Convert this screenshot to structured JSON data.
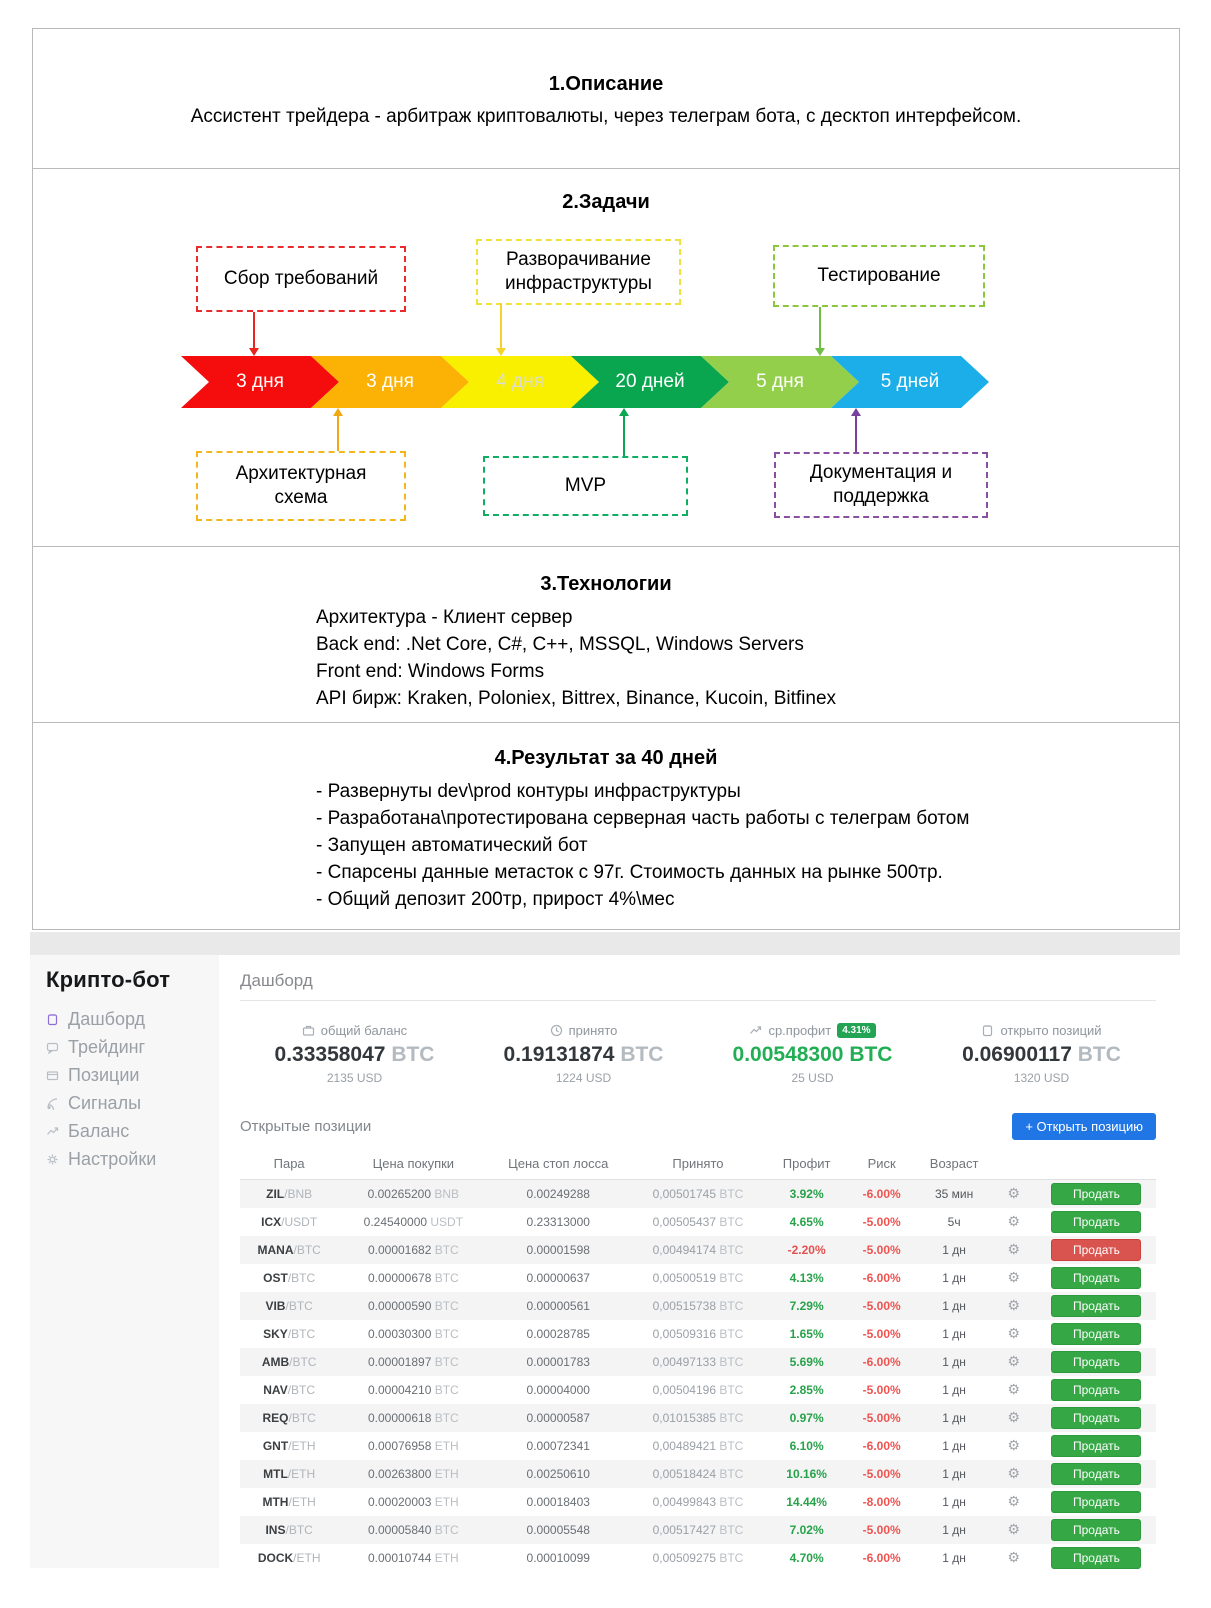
{
  "document": {
    "section1": {
      "title": "1.Описание",
      "text": "Ассистент трейдера - арбитраж криптовалюты, через телеграм бота, с десктоп интерфейсом."
    },
    "section2": {
      "title": "2.Задачи",
      "top_boxes": [
        {
          "label": "Сбор требований",
          "border_color": "#e82c2c"
        },
        {
          "label": "Разворачивание инфраструктуры",
          "border_color": "#f0e13c"
        },
        {
          "label": "Тестирование",
          "border_color": "#8cc63f"
        }
      ],
      "timeline": [
        {
          "label": "3 дня",
          "color": "#f50d0d",
          "text_color": "#ffffff"
        },
        {
          "label": "3 дня",
          "color": "#fcb105",
          "text_color": "#ffffff"
        },
        {
          "label": "4 дня",
          "color": "#f9f000",
          "text_color": "#dcdcd2"
        },
        {
          "label": "20 дней",
          "color": "#0aa64f",
          "text_color": "#ffffff"
        },
        {
          "label": "5 дня",
          "color": "#94cf4c",
          "text_color": "#ffffff"
        },
        {
          "label": "5 дней",
          "color": "#1caee8",
          "text_color": "#ffffff"
        }
      ],
      "bottom_boxes": [
        {
          "label": "Архитектурная схема",
          "border_color": "#f3b71b"
        },
        {
          "label": "MVP",
          "border_color": "#0fae62"
        },
        {
          "label": "Документация и поддержка",
          "border_color": "#8a4fa0"
        }
      ],
      "connectors": [
        {
          "position": "top",
          "color": "#e8251f"
        },
        {
          "position": "top",
          "color": "#f5d32c"
        },
        {
          "position": "top",
          "color": "#6fbf44"
        },
        {
          "position": "bottom",
          "color": "#f2a911"
        },
        {
          "position": "bottom",
          "color": "#0ca750"
        },
        {
          "position": "bottom",
          "color": "#7b3f9e"
        }
      ]
    },
    "section3": {
      "title": "3.Технологии",
      "lines": [
        "Архитектура - Клиент сервер",
        "Back end: .Net Core, C#, C++, MSSQL, Windows Servers",
        "Front end: Windows Forms",
        "API бирж: Kraken, Poloniex, Bittrex, Binance, Kucoin, Bitfinex"
      ]
    },
    "section4": {
      "title": "4.Результат за 40 дней",
      "lines": [
        "- Развернуты dev\\prod контуры инфраструктуры",
        "- Разработана\\протестирована серверная часть работы с телеграм ботом",
        "- Запущен автоматический бот",
        "- Спарсены данные метасток с 97г. Стоимость данных на рынке 500тр.",
        "- Общий депозит 200тр, прирост 4%\\мес"
      ]
    }
  },
  "app": {
    "brand": "Крипто-бот",
    "nav": [
      {
        "icon": "dashboard-icon",
        "label": "Дашборд"
      },
      {
        "icon": "trading-icon",
        "label": "Трейдинг"
      },
      {
        "icon": "positions-icon",
        "label": "Позиции"
      },
      {
        "icon": "signals-icon",
        "label": "Сигналы"
      },
      {
        "icon": "balance-icon",
        "label": "Баланс"
      },
      {
        "icon": "settings-icon",
        "label": "Настройки"
      }
    ],
    "page_title": "Дашборд",
    "stats": [
      {
        "icon": "briefcase-icon",
        "label": "общий баланс",
        "value": "0.33358047",
        "unit": "BTC",
        "usd": "2135 USD"
      },
      {
        "icon": "clock-icon",
        "label": "принято",
        "value": "0.19131874",
        "unit": "BTC",
        "usd": "1224 USD"
      },
      {
        "icon": "trend-icon",
        "label": "ср.профит",
        "badge": "4.31%",
        "value": "0.00548300",
        "unit": "BTC",
        "usd": "25 USD",
        "highlight": true
      },
      {
        "icon": "clipboard-icon",
        "label": "открыто позиций",
        "value": "0.06900117",
        "unit": "BTC",
        "usd": "1320 USD"
      }
    ],
    "positions": {
      "title": "Открытые позиции",
      "open_button": "+ Открыть позицию",
      "sell_label": "Продать",
      "gear_icon": "⚙",
      "columns": [
        "Пара",
        "Цена покупки",
        "Цена стоп лосса",
        "Принято",
        "Профит",
        "Риск",
        "Возраст",
        "",
        ""
      ],
      "accepted_currency": "BTC",
      "rows": [
        {
          "pair": "ZIL",
          "quote": "BNB",
          "buy": "0.00265200",
          "buy_cur": "BNB",
          "stop": "0.00249288",
          "accepted": "0,00501745",
          "profit": "3.92%",
          "risk": "-6.00%",
          "age": "35 мин",
          "sell": "green"
        },
        {
          "pair": "ICX",
          "quote": "USDT",
          "buy": "0.24540000",
          "buy_cur": "USDT",
          "stop": "0.23313000",
          "accepted": "0,00505437",
          "profit": "4.65%",
          "risk": "-5.00%",
          "age": "5ч",
          "sell": "green"
        },
        {
          "pair": "MANA",
          "quote": "BTC",
          "buy": "0.00001682",
          "buy_cur": "BTC",
          "stop": "0.00001598",
          "accepted": "0,00494174",
          "profit": "-2.20%",
          "risk": "-5.00%",
          "age": "1 дн",
          "sell": "red"
        },
        {
          "pair": "OST",
          "quote": "BTC",
          "buy": "0.00000678",
          "buy_cur": "BTC",
          "stop": "0.00000637",
          "accepted": "0,00500519",
          "profit": "4.13%",
          "risk": "-6.00%",
          "age": "1 дн",
          "sell": "green"
        },
        {
          "pair": "VIB",
          "quote": "BTC",
          "buy": "0.00000590",
          "buy_cur": "BTC",
          "stop": "0.00000561",
          "accepted": "0,00515738",
          "profit": "7.29%",
          "risk": "-5.00%",
          "age": "1 дн",
          "sell": "green"
        },
        {
          "pair": "SKY",
          "quote": "BTC",
          "buy": "0.00030300",
          "buy_cur": "BTC",
          "stop": "0.00028785",
          "accepted": "0,00509316",
          "profit": "1.65%",
          "risk": "-5.00%",
          "age": "1 дн",
          "sell": "green"
        },
        {
          "pair": "AMB",
          "quote": "BTC",
          "buy": "0.00001897",
          "buy_cur": "BTC",
          "stop": "0.00001783",
          "accepted": "0,00497133",
          "profit": "5.69%",
          "risk": "-6.00%",
          "age": "1 дн",
          "sell": "green"
        },
        {
          "pair": "NAV",
          "quote": "BTC",
          "buy": "0.00004210",
          "buy_cur": "BTC",
          "stop": "0.00004000",
          "accepted": "0,00504196",
          "profit": "2.85%",
          "risk": "-5.00%",
          "age": "1 дн",
          "sell": "green"
        },
        {
          "pair": "REQ",
          "quote": "BTC",
          "buy": "0.00000618",
          "buy_cur": "BTC",
          "stop": "0.00000587",
          "accepted": "0,01015385",
          "profit": "0.97%",
          "risk": "-5.00%",
          "age": "1 дн",
          "sell": "green"
        },
        {
          "pair": "GNT",
          "quote": "ETH",
          "buy": "0.00076958",
          "buy_cur": "ETH",
          "stop": "0.00072341",
          "accepted": "0,00489421",
          "profit": "6.10%",
          "risk": "-6.00%",
          "age": "1 дн",
          "sell": "green"
        },
        {
          "pair": "MTL",
          "quote": "ETH",
          "buy": "0.00263800",
          "buy_cur": "ETH",
          "stop": "0.00250610",
          "accepted": "0,00518424",
          "profit": "10.16%",
          "risk": "-5.00%",
          "age": "1 дн",
          "sell": "green"
        },
        {
          "pair": "MTH",
          "quote": "ETH",
          "buy": "0.00020003",
          "buy_cur": "ETH",
          "stop": "0.00018403",
          "accepted": "0,00499843",
          "profit": "14.44%",
          "risk": "-8.00%",
          "age": "1 дн",
          "sell": "green"
        },
        {
          "pair": "INS",
          "quote": "BTC",
          "buy": "0.00005840",
          "buy_cur": "BTC",
          "stop": "0.00005548",
          "accepted": "0,00517427",
          "profit": "7.02%",
          "risk": "-5.00%",
          "age": "1 дн",
          "sell": "green"
        },
        {
          "pair": "DOCK",
          "quote": "ETH",
          "buy": "0.00010744",
          "buy_cur": "ETH",
          "stop": "0.00010099",
          "accepted": "0,00509275",
          "profit": "4.70%",
          "risk": "-6.00%",
          "age": "1 дн",
          "sell": "green"
        }
      ]
    }
  }
}
